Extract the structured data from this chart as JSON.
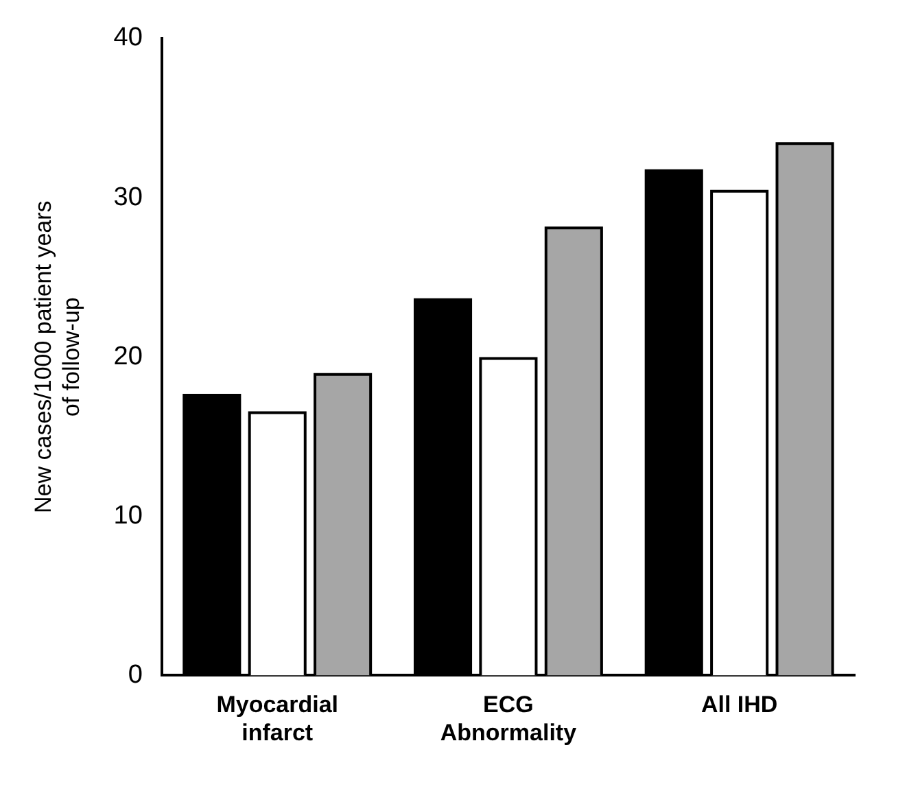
{
  "chart_data": {
    "type": "bar",
    "ylabel": "New cases/1000 patient years of follow-up",
    "categories": [
      "Myocardial infarct",
      "ECG Abnormality",
      "All IHD"
    ],
    "series": [
      {
        "color": "#000000",
        "values": [
          17.6,
          23.6,
          31.7
        ]
      },
      {
        "color": "#ffffff",
        "values": [
          16.5,
          19.9,
          30.4
        ]
      },
      {
        "color": "#a6a6a6",
        "values": [
          18.9,
          28.1,
          33.4
        ]
      }
    ],
    "ylim": [
      0,
      40
    ],
    "yticks": [
      0,
      10,
      20,
      30,
      40
    ],
    "grid": false,
    "legend": false
  }
}
